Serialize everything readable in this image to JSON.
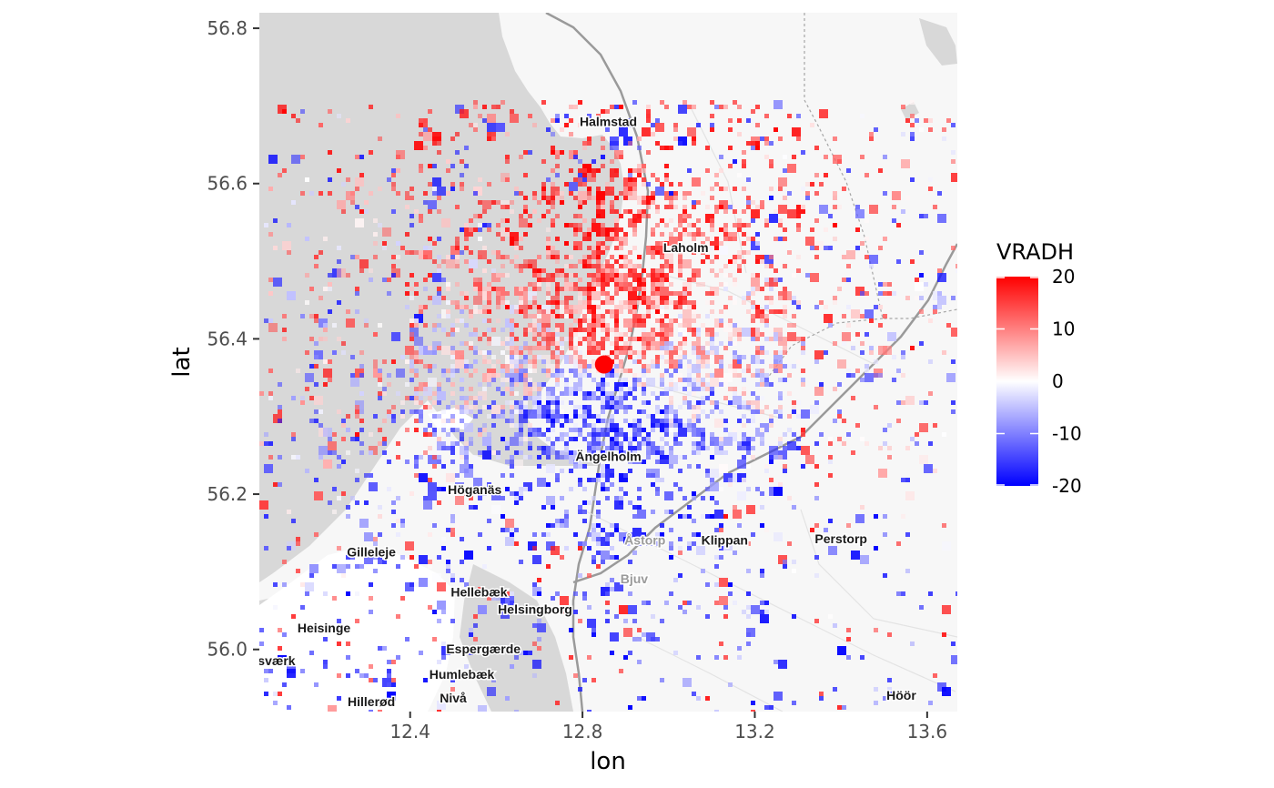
{
  "chart_data": {
    "type": "heatmap",
    "xlabel": "lon",
    "ylabel": "lat",
    "xlim": [
      12.05,
      13.67
    ],
    "ylim": [
      55.92,
      56.82
    ],
    "x_ticks": [
      12.4,
      12.8,
      13.2,
      13.6
    ],
    "x_tick_labels": [
      "12.4",
      "12.8",
      "13.2",
      "13.6"
    ],
    "y_ticks": [
      56.0,
      56.2,
      56.4,
      56.6,
      56.8
    ],
    "y_tick_labels": [
      "56.0",
      "56.2",
      "56.4",
      "56.6",
      "56.8"
    ],
    "legend": {
      "title": "VRADH",
      "placement": "right",
      "range": [
        -20,
        20
      ],
      "ticks": [
        20,
        10,
        0,
        -10,
        -20
      ],
      "tick_labels": [
        "20",
        "10",
        "0",
        "-10",
        "-20"
      ],
      "color_low": "#0000ff",
      "color_mid": "#ffffff",
      "color_high": "#ff0000"
    },
    "radar_site": {
      "lon": 12.85,
      "lat": 56.367,
      "color": "#ff0000"
    },
    "basemap_places": [
      {
        "name": "Halmstad",
        "lon": 12.86,
        "lat": 56.674,
        "style": "dark"
      },
      {
        "name": "Laholm",
        "lon": 13.04,
        "lat": 56.512,
        "style": "dark"
      },
      {
        "name": "Ängelholm",
        "lon": 12.86,
        "lat": 56.243,
        "style": "dark"
      },
      {
        "name": "Höganäs",
        "lon": 12.55,
        "lat": 56.2,
        "style": "dark"
      },
      {
        "name": "Åstorp",
        "lon": 12.945,
        "lat": 56.135,
        "style": "light"
      },
      {
        "name": "Klippan",
        "lon": 13.13,
        "lat": 56.135,
        "style": "dark"
      },
      {
        "name": "Perstorp",
        "lon": 13.4,
        "lat": 56.137,
        "style": "dark"
      },
      {
        "name": "Gilleleje",
        "lon": 12.31,
        "lat": 56.12,
        "style": "dark"
      },
      {
        "name": "Bjuv",
        "lon": 12.92,
        "lat": 56.085,
        "style": "light"
      },
      {
        "name": "Hellebæk",
        "lon": 12.56,
        "lat": 56.068,
        "style": "dark"
      },
      {
        "name": "Helsingborg",
        "lon": 12.69,
        "lat": 56.046,
        "style": "dark"
      },
      {
        "name": "Heisinge",
        "lon": 12.2,
        "lat": 56.022,
        "style": "dark"
      },
      {
        "name": "Espergærde",
        "lon": 12.57,
        "lat": 55.995,
        "style": "dark"
      },
      {
        "name": "Humlebæk",
        "lon": 12.52,
        "lat": 55.962,
        "style": "dark"
      },
      {
        "name": "Nivå",
        "lon": 12.5,
        "lat": 55.932,
        "style": "dark"
      },
      {
        "name": "Hillerød",
        "lon": 12.31,
        "lat": 55.927,
        "style": "dark"
      },
      {
        "name": "Höör",
        "lon": 13.54,
        "lat": 55.935,
        "style": "dark"
      },
      {
        "name": "sværk",
        "lon": 12.09,
        "lat": 55.98,
        "style": "dark"
      }
    ]
  }
}
